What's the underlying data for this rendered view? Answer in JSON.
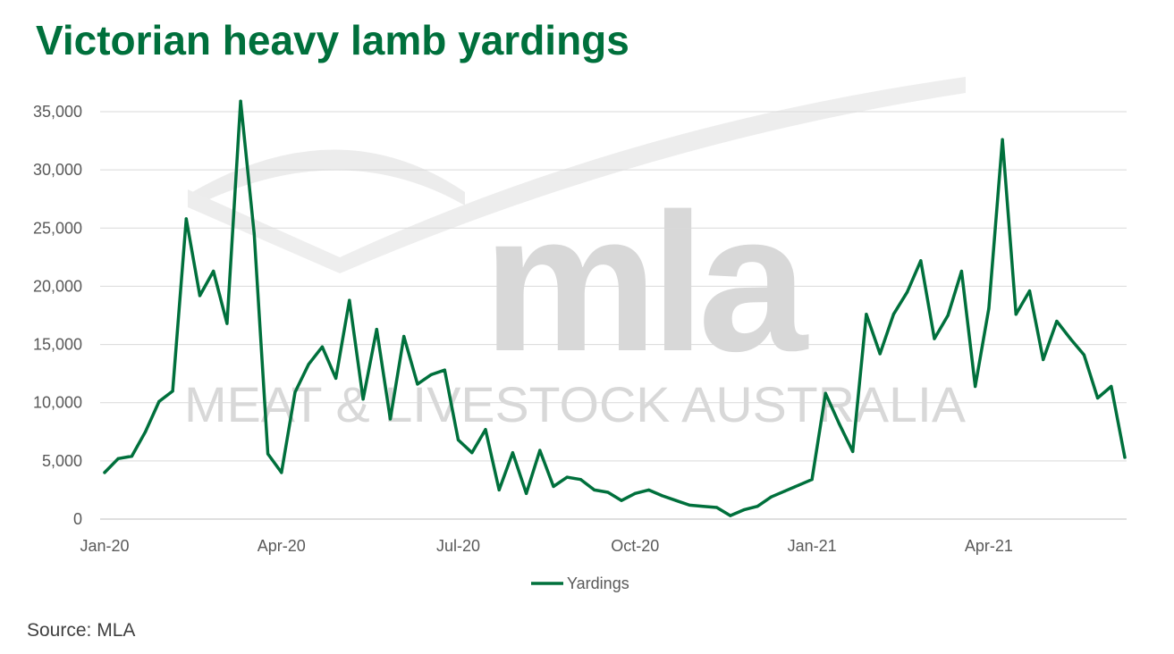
{
  "title": "Victorian heavy lamb yardings",
  "source": "Source: MLA",
  "watermark": {
    "logo_text": "mla",
    "tagline": "MEAT & LIVESTOCK AUSTRALIA"
  },
  "colors": {
    "line": "#00703C",
    "title": "#00703C",
    "grid": "#d9d9d9",
    "watermark": "#cfcfcf"
  },
  "chart_data": {
    "type": "line",
    "title": "Victorian heavy lamb yardings",
    "xlabel": "",
    "ylabel": "",
    "ylim": [
      0,
      35000
    ],
    "yticks": [
      0,
      5000,
      10000,
      15000,
      20000,
      25000,
      30000,
      35000
    ],
    "ytick_labels": [
      "0",
      "5,000",
      "10,000",
      "15,000",
      "20,000",
      "25,000",
      "30,000",
      "35,000"
    ],
    "xticks": [
      {
        "label": "Jan-20",
        "week": 0
      },
      {
        "label": "Apr-20",
        "week": 13
      },
      {
        "label": "Jul-20",
        "week": 26
      },
      {
        "label": "Oct-20",
        "week": 39
      },
      {
        "label": "Jan-21",
        "week": 52
      },
      {
        "label": "Apr-21",
        "week": 65
      }
    ],
    "grid": true,
    "legend": "bottom-center",
    "x_unit": "week",
    "series": [
      {
        "name": "Yardings",
        "color": "#00703C",
        "values": [
          4000,
          5200,
          5400,
          7500,
          10100,
          11000,
          25800,
          19200,
          21300,
          16800,
          35900,
          24500,
          5600,
          4000,
          10900,
          13300,
          14800,
          12100,
          18800,
          10300,
          16300,
          8600,
          15700,
          11600,
          12400,
          12800,
          6800,
          5700,
          7700,
          2500,
          5700,
          2200,
          5900,
          2800,
          3600,
          3400,
          2500,
          2300,
          1600,
          2200,
          2500,
          2000,
          1600,
          1200,
          1100,
          1000,
          300,
          800,
          1100,
          1900,
          2400,
          2900,
          3400,
          10800,
          8200,
          5800,
          17600,
          14200,
          17600,
          19500,
          22200,
          15500,
          17500,
          21300,
          11400,
          18100,
          32600,
          17600,
          19600,
          13700,
          17000,
          15500,
          14100,
          10400,
          11400,
          5300
        ]
      }
    ]
  }
}
